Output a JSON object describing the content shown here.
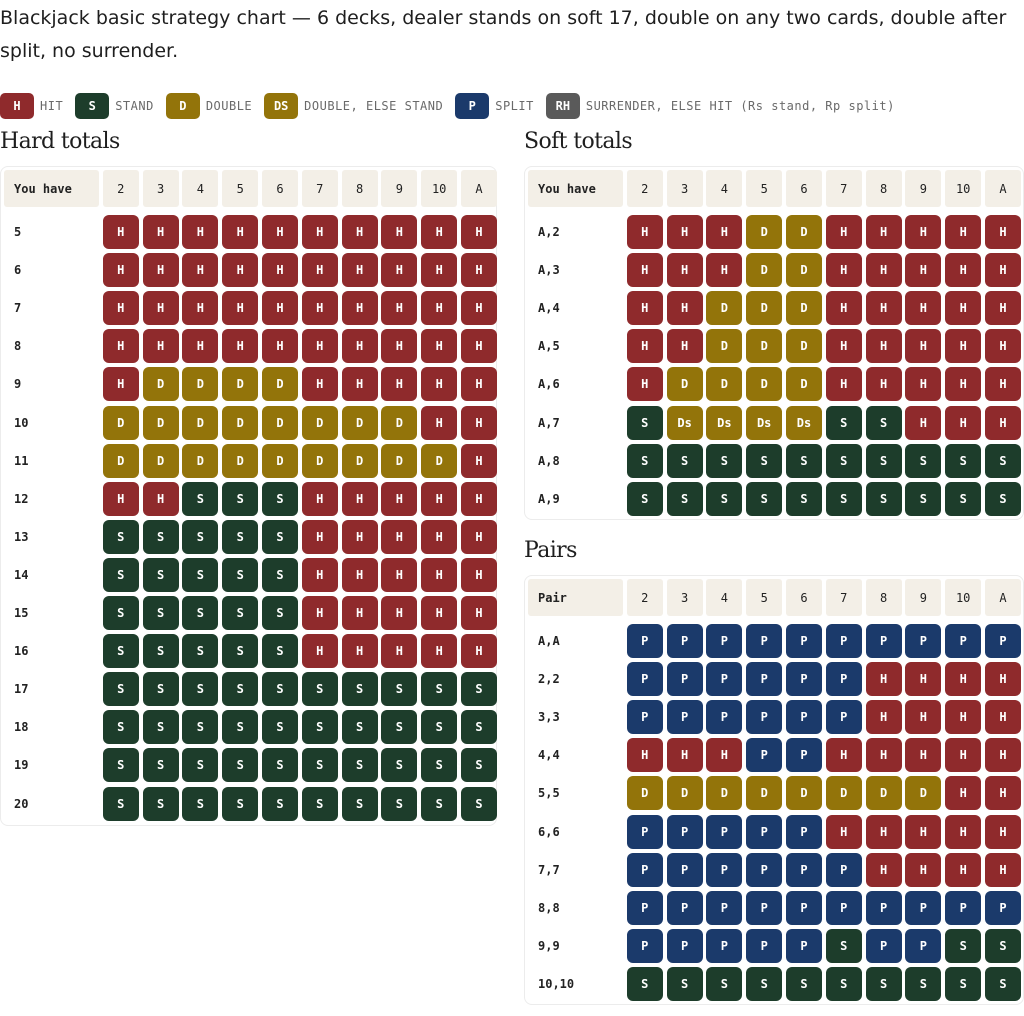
{
  "intro": "Blackjack basic strategy chart — 6 decks, dealer stands on soft 17, double on any two cards, double after split, no surrender.",
  "colors": {
    "H": "#8f2a2c",
    "S": "#1d3d2b",
    "D": "#93740a",
    "Ds": "#93740a",
    "P": "#1b3a6b",
    "RH": "#5a5a5a"
  },
  "legend": [
    {
      "code": "H",
      "label": "HIT",
      "color": "#8f2a2c"
    },
    {
      "code": "S",
      "label": "STAND",
      "color": "#1d3d2b"
    },
    {
      "code": "D",
      "label": "DOUBLE",
      "color": "#93740a"
    },
    {
      "code": "DS",
      "label": "DOUBLE, ELSE STAND",
      "color": "#93740a"
    },
    {
      "code": "P",
      "label": "SPLIT",
      "color": "#1b3a6b"
    },
    {
      "code": "RH",
      "label": "SURRENDER, ELSE HIT (Rs stand, Rp split)",
      "color": "#5a5a5a"
    }
  ],
  "dealer_cards": [
    "2",
    "3",
    "4",
    "5",
    "6",
    "7",
    "8",
    "9",
    "10",
    "A"
  ],
  "tables": [
    {
      "id": "hard",
      "title": "Hard totals",
      "corner": "You have",
      "rows": [
        {
          "label": "5",
          "cells": [
            "H",
            "H",
            "H",
            "H",
            "H",
            "H",
            "H",
            "H",
            "H",
            "H"
          ]
        },
        {
          "label": "6",
          "cells": [
            "H",
            "H",
            "H",
            "H",
            "H",
            "H",
            "H",
            "H",
            "H",
            "H"
          ]
        },
        {
          "label": "7",
          "cells": [
            "H",
            "H",
            "H",
            "H",
            "H",
            "H",
            "H",
            "H",
            "H",
            "H"
          ]
        },
        {
          "label": "8",
          "cells": [
            "H",
            "H",
            "H",
            "H",
            "H",
            "H",
            "H",
            "H",
            "H",
            "H"
          ]
        },
        {
          "label": "9",
          "cells": [
            "H",
            "D",
            "D",
            "D",
            "D",
            "H",
            "H",
            "H",
            "H",
            "H"
          ]
        },
        {
          "label": "10",
          "cells": [
            "D",
            "D",
            "D",
            "D",
            "D",
            "D",
            "D",
            "D",
            "H",
            "H"
          ]
        },
        {
          "label": "11",
          "cells": [
            "D",
            "D",
            "D",
            "D",
            "D",
            "D",
            "D",
            "D",
            "D",
            "H"
          ]
        },
        {
          "label": "12",
          "cells": [
            "H",
            "H",
            "S",
            "S",
            "S",
            "H",
            "H",
            "H",
            "H",
            "H"
          ]
        },
        {
          "label": "13",
          "cells": [
            "S",
            "S",
            "S",
            "S",
            "S",
            "H",
            "H",
            "H",
            "H",
            "H"
          ]
        },
        {
          "label": "14",
          "cells": [
            "S",
            "S",
            "S",
            "S",
            "S",
            "H",
            "H",
            "H",
            "H",
            "H"
          ]
        },
        {
          "label": "15",
          "cells": [
            "S",
            "S",
            "S",
            "S",
            "S",
            "H",
            "H",
            "H",
            "H",
            "H"
          ]
        },
        {
          "label": "16",
          "cells": [
            "S",
            "S",
            "S",
            "S",
            "S",
            "H",
            "H",
            "H",
            "H",
            "H"
          ]
        },
        {
          "label": "17",
          "cells": [
            "S",
            "S",
            "S",
            "S",
            "S",
            "S",
            "S",
            "S",
            "S",
            "S"
          ]
        },
        {
          "label": "18",
          "cells": [
            "S",
            "S",
            "S",
            "S",
            "S",
            "S",
            "S",
            "S",
            "S",
            "S"
          ]
        },
        {
          "label": "19",
          "cells": [
            "S",
            "S",
            "S",
            "S",
            "S",
            "S",
            "S",
            "S",
            "S",
            "S"
          ]
        },
        {
          "label": "20",
          "cells": [
            "S",
            "S",
            "S",
            "S",
            "S",
            "S",
            "S",
            "S",
            "S",
            "S"
          ]
        }
      ]
    },
    {
      "id": "soft",
      "title": "Soft totals",
      "corner": "You have",
      "rows": [
        {
          "label": "A,2",
          "cells": [
            "H",
            "H",
            "H",
            "D",
            "D",
            "H",
            "H",
            "H",
            "H",
            "H"
          ]
        },
        {
          "label": "A,3",
          "cells": [
            "H",
            "H",
            "H",
            "D",
            "D",
            "H",
            "H",
            "H",
            "H",
            "H"
          ]
        },
        {
          "label": "A,4",
          "cells": [
            "H",
            "H",
            "D",
            "D",
            "D",
            "H",
            "H",
            "H",
            "H",
            "H"
          ]
        },
        {
          "label": "A,5",
          "cells": [
            "H",
            "H",
            "D",
            "D",
            "D",
            "H",
            "H",
            "H",
            "H",
            "H"
          ]
        },
        {
          "label": "A,6",
          "cells": [
            "H",
            "D",
            "D",
            "D",
            "D",
            "H",
            "H",
            "H",
            "H",
            "H"
          ]
        },
        {
          "label": "A,7",
          "cells": [
            "S",
            "Ds",
            "Ds",
            "Ds",
            "Ds",
            "S",
            "S",
            "H",
            "H",
            "H"
          ]
        },
        {
          "label": "A,8",
          "cells": [
            "S",
            "S",
            "S",
            "S",
            "S",
            "S",
            "S",
            "S",
            "S",
            "S"
          ]
        },
        {
          "label": "A,9",
          "cells": [
            "S",
            "S",
            "S",
            "S",
            "S",
            "S",
            "S",
            "S",
            "S",
            "S"
          ]
        }
      ]
    },
    {
      "id": "pairs",
      "title": "Pairs",
      "corner": "Pair",
      "rows": [
        {
          "label": "A,A",
          "cells": [
            "P",
            "P",
            "P",
            "P",
            "P",
            "P",
            "P",
            "P",
            "P",
            "P"
          ]
        },
        {
          "label": "2,2",
          "cells": [
            "P",
            "P",
            "P",
            "P",
            "P",
            "P",
            "H",
            "H",
            "H",
            "H"
          ]
        },
        {
          "label": "3,3",
          "cells": [
            "P",
            "P",
            "P",
            "P",
            "P",
            "P",
            "H",
            "H",
            "H",
            "H"
          ]
        },
        {
          "label": "4,4",
          "cells": [
            "H",
            "H",
            "H",
            "P",
            "P",
            "H",
            "H",
            "H",
            "H",
            "H"
          ]
        },
        {
          "label": "5,5",
          "cells": [
            "D",
            "D",
            "D",
            "D",
            "D",
            "D",
            "D",
            "D",
            "H",
            "H"
          ]
        },
        {
          "label": "6,6",
          "cells": [
            "P",
            "P",
            "P",
            "P",
            "P",
            "H",
            "H",
            "H",
            "H",
            "H"
          ]
        },
        {
          "label": "7,7",
          "cells": [
            "P",
            "P",
            "P",
            "P",
            "P",
            "P",
            "H",
            "H",
            "H",
            "H"
          ]
        },
        {
          "label": "8,8",
          "cells": [
            "P",
            "P",
            "P",
            "P",
            "P",
            "P",
            "P",
            "P",
            "P",
            "P"
          ]
        },
        {
          "label": "9,9",
          "cells": [
            "P",
            "P",
            "P",
            "P",
            "P",
            "S",
            "P",
            "P",
            "S",
            "S"
          ]
        },
        {
          "label": "10,10",
          "cells": [
            "S",
            "S",
            "S",
            "S",
            "S",
            "S",
            "S",
            "S",
            "S",
            "S"
          ]
        }
      ]
    }
  ]
}
